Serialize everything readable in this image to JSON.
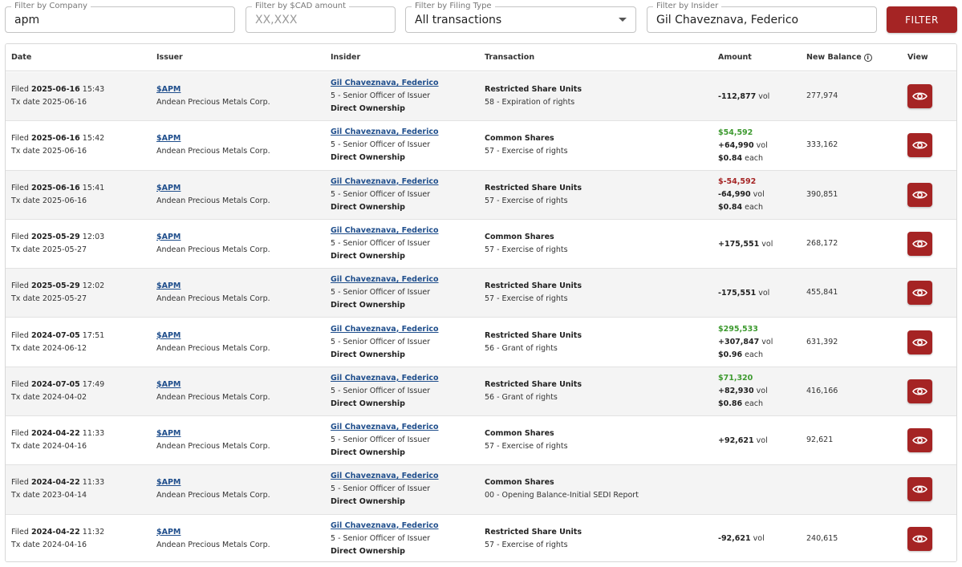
{
  "filters": {
    "company": {
      "label": "Filter by Company",
      "value": "apm"
    },
    "amount": {
      "label": "Filter by $CAD amount",
      "placeholder": "XX,XXX"
    },
    "filing": {
      "label": "Filter by Filing Type",
      "value": "All transactions"
    },
    "insider": {
      "label": "Filter by Insider",
      "value": "Gil Chaveznava, Federico"
    },
    "button": "FILTER"
  },
  "columns": {
    "date": "Date",
    "issuer": "Issuer",
    "insider": "Insider",
    "transaction": "Transaction",
    "amount": "Amount",
    "balance": "New Balance",
    "view": "View"
  },
  "colors": {
    "accent": "#a52424",
    "link": "#1f4e8c",
    "positive": "#3d9a2f"
  },
  "rows": [
    {
      "filed_word": "Filed",
      "filed_date": "2025-06-16",
      "filed_time": "15:43",
      "tx_date": "Tx date 2025-06-16",
      "ticker": "$APM",
      "issuer": "Andean Precious Metals Corp.",
      "insider": "Gil Chaveznava, Federico",
      "role": "5 - Senior Officer of Issuer",
      "ownership": "Direct Ownership",
      "security": "Restricted Share Units",
      "tx_type": "58 - Expiration of rights",
      "value": "",
      "value_color": "",
      "volume": "-112,877",
      "vol_unit": "vol",
      "price": "",
      "each": "",
      "balance": "277,974"
    },
    {
      "filed_word": "Filed",
      "filed_date": "2025-06-16",
      "filed_time": "15:42",
      "tx_date": "Tx date 2025-06-16",
      "ticker": "$APM",
      "issuer": "Andean Precious Metals Corp.",
      "insider": "Gil Chaveznava, Federico",
      "role": "5 - Senior Officer of Issuer",
      "ownership": "Direct Ownership",
      "security": "Common Shares",
      "tx_type": "57 - Exercise of rights",
      "value": "$54,592",
      "value_color": "green",
      "volume": "+64,990",
      "vol_unit": "vol",
      "price": "$0.84",
      "each": "each",
      "balance": "333,162"
    },
    {
      "filed_word": "Filed",
      "filed_date": "2025-06-16",
      "filed_time": "15:41",
      "tx_date": "Tx date 2025-06-16",
      "ticker": "$APM",
      "issuer": "Andean Precious Metals Corp.",
      "insider": "Gil Chaveznava, Federico",
      "role": "5 - Senior Officer of Issuer",
      "ownership": "Direct Ownership",
      "security": "Restricted Share Units",
      "tx_type": "57 - Exercise of rights",
      "value": "$-54,592",
      "value_color": "red",
      "volume": "-64,990",
      "vol_unit": "vol",
      "price": "$0.84",
      "each": "each",
      "balance": "390,851"
    },
    {
      "filed_word": "Filed",
      "filed_date": "2025-05-29",
      "filed_time": "12:03",
      "tx_date": "Tx date 2025-05-27",
      "ticker": "$APM",
      "issuer": "Andean Precious Metals Corp.",
      "insider": "Gil Chaveznava, Federico",
      "role": "5 - Senior Officer of Issuer",
      "ownership": "Direct Ownership",
      "security": "Common Shares",
      "tx_type": "57 - Exercise of rights",
      "value": "",
      "value_color": "",
      "volume": "+175,551",
      "vol_unit": "vol",
      "price": "",
      "each": "",
      "balance": "268,172"
    },
    {
      "filed_word": "Filed",
      "filed_date": "2025-05-29",
      "filed_time": "12:02",
      "tx_date": "Tx date 2025-05-27",
      "ticker": "$APM",
      "issuer": "Andean Precious Metals Corp.",
      "insider": "Gil Chaveznava, Federico",
      "role": "5 - Senior Officer of Issuer",
      "ownership": "Direct Ownership",
      "security": "Restricted Share Units",
      "tx_type": "57 - Exercise of rights",
      "value": "",
      "value_color": "",
      "volume": "-175,551",
      "vol_unit": "vol",
      "price": "",
      "each": "",
      "balance": "455,841"
    },
    {
      "filed_word": "Filed",
      "filed_date": "2024-07-05",
      "filed_time": "17:51",
      "tx_date": "Tx date 2024-06-12",
      "ticker": "$APM",
      "issuer": "Andean Precious Metals Corp.",
      "insider": "Gil Chaveznava, Federico",
      "role": "5 - Senior Officer of Issuer",
      "ownership": "Direct Ownership",
      "security": "Restricted Share Units",
      "tx_type": "56 - Grant of rights",
      "value": "$295,533",
      "value_color": "green",
      "volume": "+307,847",
      "vol_unit": "vol",
      "price": "$0.96",
      "each": "each",
      "balance": "631,392"
    },
    {
      "filed_word": "Filed",
      "filed_date": "2024-07-05",
      "filed_time": "17:49",
      "tx_date": "Tx date 2024-04-02",
      "ticker": "$APM",
      "issuer": "Andean Precious Metals Corp.",
      "insider": "Gil Chaveznava, Federico",
      "role": "5 - Senior Officer of Issuer",
      "ownership": "Direct Ownership",
      "security": "Restricted Share Units",
      "tx_type": "56 - Grant of rights",
      "value": "$71,320",
      "value_color": "green",
      "volume": "+82,930",
      "vol_unit": "vol",
      "price": "$0.86",
      "each": "each",
      "balance": "416,166"
    },
    {
      "filed_word": "Filed",
      "filed_date": "2024-04-22",
      "filed_time": "11:33",
      "tx_date": "Tx date 2024-04-16",
      "ticker": "$APM",
      "issuer": "Andean Precious Metals Corp.",
      "insider": "Gil Chaveznava, Federico",
      "role": "5 - Senior Officer of Issuer",
      "ownership": "Direct Ownership",
      "security": "Common Shares",
      "tx_type": "57 - Exercise of rights",
      "value": "",
      "value_color": "",
      "volume": "+92,621",
      "vol_unit": "vol",
      "price": "",
      "each": "",
      "balance": "92,621"
    },
    {
      "filed_word": "Filed",
      "filed_date": "2024-04-22",
      "filed_time": "11:33",
      "tx_date": "Tx date 2023-04-14",
      "ticker": "$APM",
      "issuer": "Andean Precious Metals Corp.",
      "insider": "Gil Chaveznava, Federico",
      "role": "5 - Senior Officer of Issuer",
      "ownership": "Direct Ownership",
      "security": "Common Shares",
      "tx_type": "00 - Opening Balance-Initial SEDI Report",
      "value": "",
      "value_color": "",
      "volume": "",
      "vol_unit": "",
      "price": "",
      "each": "",
      "balance": ""
    },
    {
      "filed_word": "Filed",
      "filed_date": "2024-04-22",
      "filed_time": "11:32",
      "tx_date": "Tx date 2024-04-16",
      "ticker": "$APM",
      "issuer": "Andean Precious Metals Corp.",
      "insider": "Gil Chaveznava, Federico",
      "role": "5 - Senior Officer of Issuer",
      "ownership": "Direct Ownership",
      "security": "Restricted Share Units",
      "tx_type": "57 - Exercise of rights",
      "value": "",
      "value_color": "",
      "volume": "-92,621",
      "vol_unit": "vol",
      "price": "",
      "each": "",
      "balance": "240,615"
    }
  ]
}
